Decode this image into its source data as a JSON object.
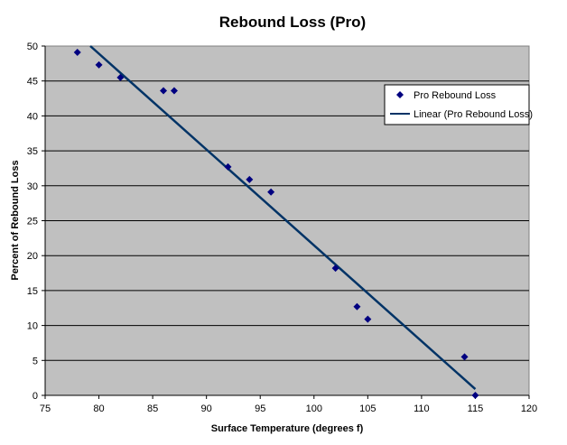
{
  "chart_data": {
    "type": "scatter",
    "title": "Rebound Loss (Pro)",
    "xlabel": "Surface Temperature (degrees f)",
    "ylabel": "Percent of Rebound Loss",
    "xlim": [
      75,
      120
    ],
    "ylim": [
      0,
      50
    ],
    "xticks": [
      75,
      80,
      85,
      90,
      95,
      100,
      105,
      110,
      115,
      120
    ],
    "yticks": [
      0,
      5,
      10,
      15,
      20,
      25,
      30,
      35,
      40,
      45,
      50
    ],
    "grid": true,
    "legend_position": "right",
    "series": [
      {
        "name": "Pro Rebound Loss",
        "color": "#000080",
        "x": [
          78,
          80,
          82,
          86,
          87,
          92,
          94,
          96,
          102,
          104,
          105,
          114,
          115
        ],
        "y": [
          49.1,
          47.3,
          45.5,
          43.6,
          43.6,
          32.7,
          30.9,
          29.1,
          18.2,
          12.7,
          10.9,
          5.5,
          0
        ]
      },
      {
        "name": "Linear (Pro Rebound Loss)",
        "color": "#003366",
        "type": "line",
        "x": [
          79.2,
          115
        ],
        "y": [
          50,
          0.9
        ]
      }
    ]
  }
}
